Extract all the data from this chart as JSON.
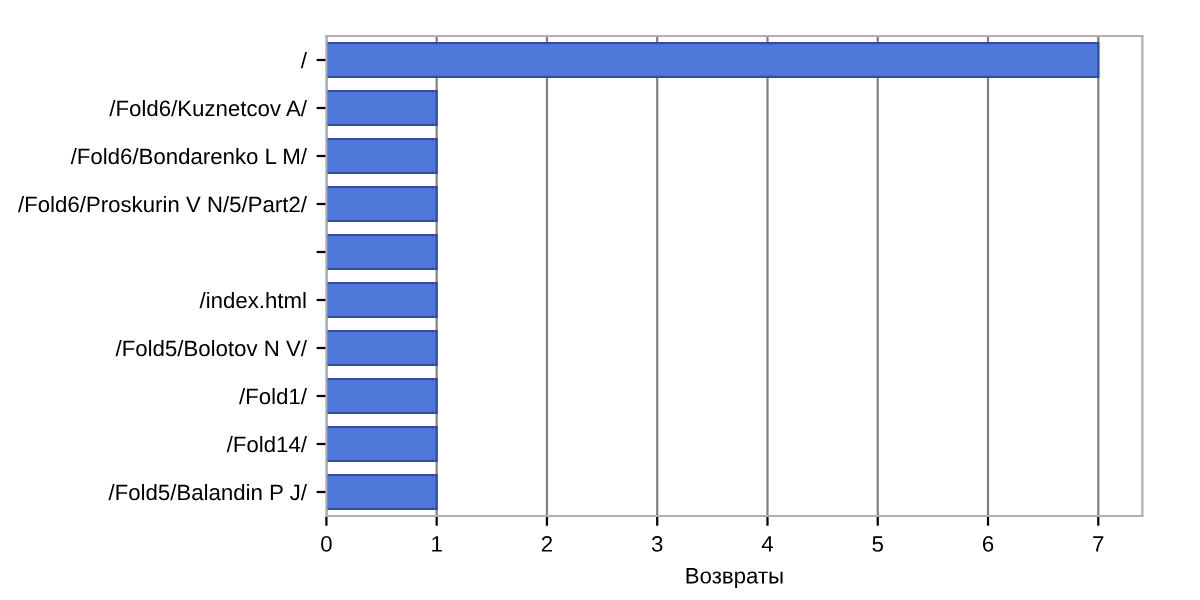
{
  "chart_data": {
    "type": "bar",
    "orientation": "horizontal",
    "categories": [
      "/",
      "/Fold6/Kuznetcov A/",
      "/Fold6/Bondarenko L M/",
      "/Fold6/Proskurin V N/5/Part2/",
      null,
      "/index.html",
      "/Fold5/Bolotov N V/",
      "/Fold1/",
      "/Fold14/",
      "/Fold5/Balandin P J/"
    ],
    "values": [
      7,
      1,
      1,
      1,
      1,
      1,
      1,
      1,
      1,
      1
    ],
    "color": "#4f78d8",
    "xlabel": "Возвраты",
    "xlim": [
      0,
      7.4
    ],
    "xticks": [
      0,
      1,
      2,
      3,
      4,
      5,
      6,
      7
    ],
    "grid": "x"
  }
}
